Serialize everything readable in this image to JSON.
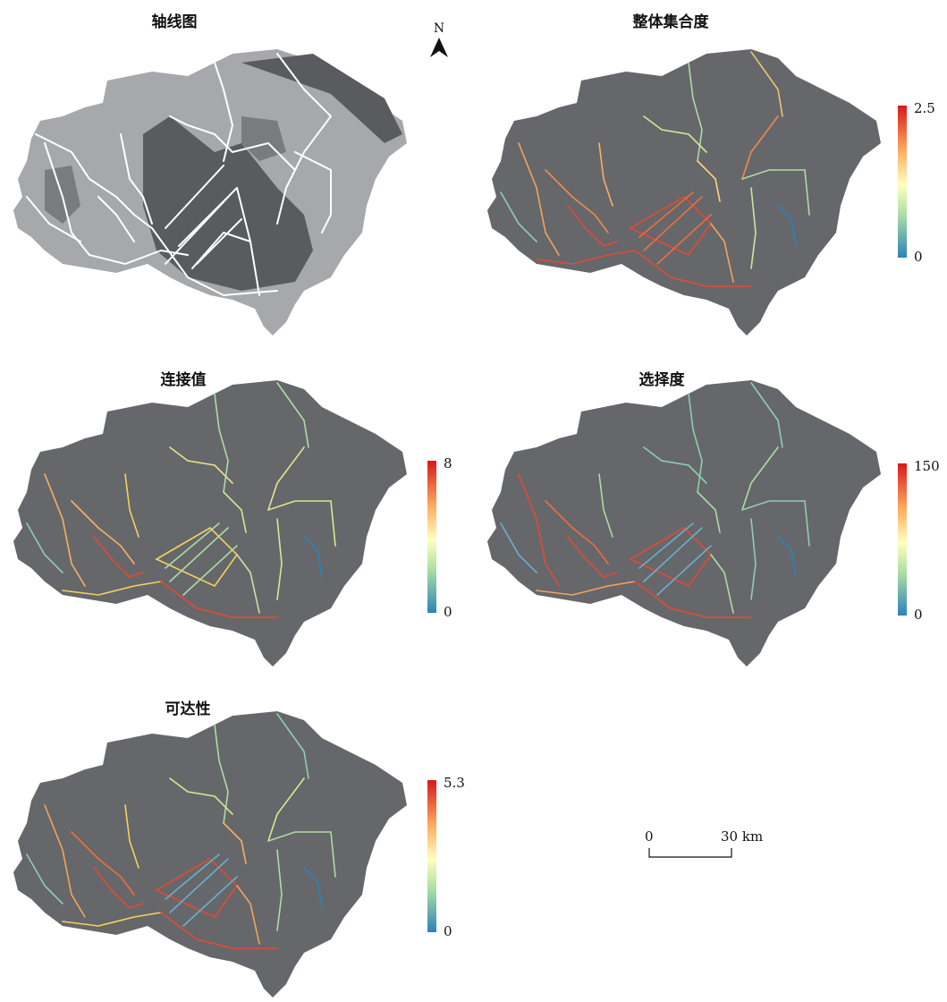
{
  "panels": {
    "axial": {
      "title": "轴线图"
    },
    "integration": {
      "title": "整体集合度",
      "legend_max": "2.5",
      "legend_min": "0"
    },
    "connectivity": {
      "title": "连接值",
      "legend_max": "8",
      "legend_min": "0"
    },
    "choice": {
      "title": "选择度",
      "legend_max": "150",
      "legend_min": "0"
    },
    "accessibility": {
      "title": "可达性",
      "legend_max": "5.3",
      "legend_min": "0"
    }
  },
  "north_arrow": {
    "label": "N"
  },
  "scale_bar": {
    "start": "0",
    "end": "30 km"
  },
  "colors": {
    "region_fill": "#66676b",
    "axial_land_fill": "#a7a8ab",
    "axial_water_fill": "#5a5b5f",
    "ramp_high": "#d7191c",
    "ramp_mid": "#ffffbf",
    "ramp_low": "#2b83ba"
  }
}
